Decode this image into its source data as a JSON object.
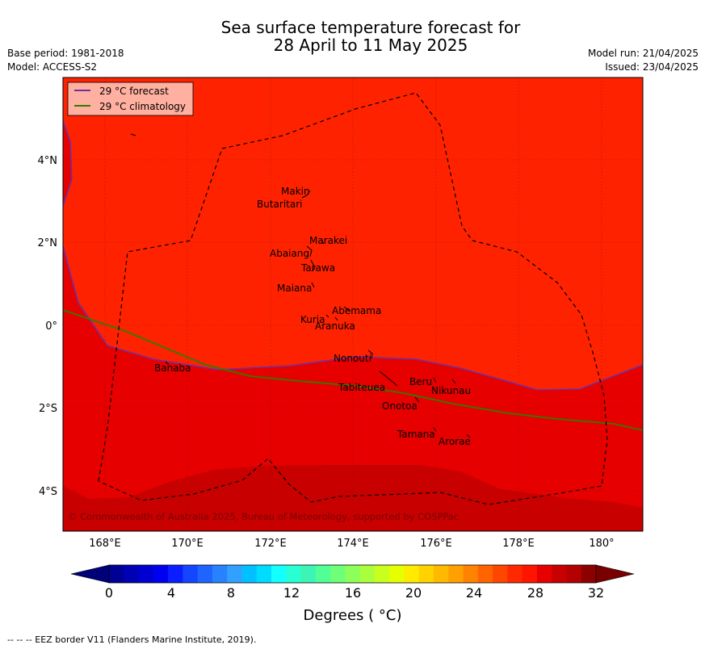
{
  "header": {
    "title_line1": "Sea surface temperature forecast for",
    "title_line2": "28 April to 11 May 2025",
    "base_period": "Base period: 1981-2018",
    "model": "Model: ACCESS-S2",
    "model_run": "Model run: 21/04/2025",
    "issued": "Issued: 23/04/2025"
  },
  "map": {
    "extent": {
      "lon": [
        167,
        181
      ],
      "lat": [
        -5,
        6
      ]
    },
    "lat_ticks": [
      "4°N",
      "2°N",
      "0°",
      "2°S",
      "4°S"
    ],
    "lon_ticks": [
      "168°E",
      "170°E",
      "172°E",
      "174°E",
      "176°E",
      "178°E",
      "180°"
    ],
    "legend": [
      {
        "label": "29 °C  forecast",
        "color": "#7030a0"
      },
      {
        "label": "29 °C  climatology",
        "color": "#2e7d00"
      }
    ],
    "copyright": "© Commonwealth of Australia 2025, Bureau of Meteorology, supported by COSPPac",
    "islands": [
      "Makin",
      "Butaritari",
      "Marakei",
      "Abaiang",
      "Tarawa",
      "Maiana",
      "Abemama",
      "Kuria",
      "Aranuka",
      "Nonouti",
      "Banaba",
      "Beru",
      "Nikunau",
      "Tabiteuea",
      "Onotoa",
      "Tamana",
      "Arorae"
    ],
    "colors": {
      "warm_fill": "#ff2200",
      "mid_fill": "#e60000",
      "deep_fill": "#c80000",
      "darkest_fill": "#b00000"
    }
  },
  "colorbar": {
    "ticks": [
      "0",
      "4",
      "8",
      "12",
      "16",
      "20",
      "24",
      "28",
      "32"
    ],
    "title": "Degrees ( °C)",
    "colors": [
      "#000096",
      "#0000b4",
      "#0000d2",
      "#0000f0",
      "#0a1eff",
      "#1446ff",
      "#1e64ff",
      "#2882ff",
      "#32a0ff",
      "#00c0ff",
      "#00dcff",
      "#14ffff",
      "#28ffd2",
      "#3cf5b4",
      "#50ff96",
      "#6eff78",
      "#8cff5a",
      "#aaff3c",
      "#c8ff1e",
      "#e6ff00",
      "#ffeb00",
      "#ffd200",
      "#ffb900",
      "#ffa000",
      "#ff8200",
      "#ff6400",
      "#ff4600",
      "#ff2800",
      "#ff1400",
      "#e60000",
      "#c80000",
      "#b40000",
      "#8c0000"
    ],
    "under_color": "#000078",
    "over_color": "#780000"
  },
  "footer": {
    "eez_note": "--  --  -- EEZ border V11 (Flanders Marine Institute, 2019)."
  }
}
